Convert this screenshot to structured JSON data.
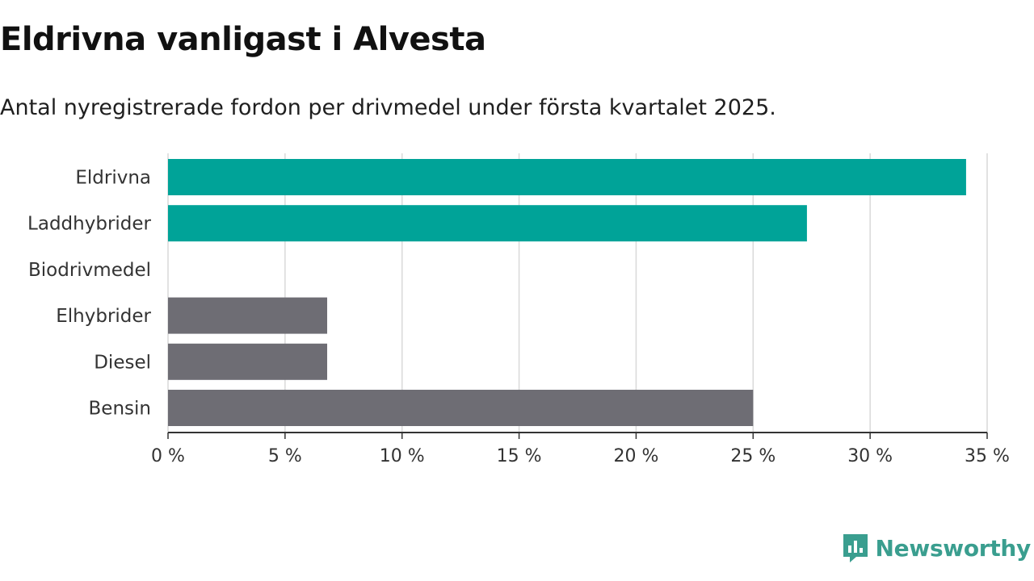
{
  "header": {
    "title": "Eldrivna vanligast i Alvesta",
    "subtitle": "Antal nyregistrerade fordon per drivmedel under första kvartalet 2025."
  },
  "brand": {
    "name": "Newsworthy",
    "color": "#3a9e8f",
    "icon": "newsworthy-chart-logo-icon"
  },
  "colors": {
    "highlight": "#00a398",
    "other": "#6e6d74",
    "grid": "#d9d9d9",
    "axis": "#333333"
  },
  "chart_data": {
    "type": "bar",
    "orientation": "horizontal",
    "categories": [
      "Eldrivna",
      "Laddhybrider",
      "Biodrivmedel",
      "Elhybrider",
      "Diesel",
      "Bensin"
    ],
    "values": [
      34.1,
      27.3,
      0,
      6.8,
      6.8,
      25.0
    ],
    "highlighted": [
      true,
      true,
      false,
      false,
      false,
      false
    ],
    "xlim": [
      0,
      35
    ],
    "xticks": [
      0,
      5,
      10,
      15,
      20,
      25,
      30,
      35
    ],
    "xtick_labels": [
      "0 %",
      "5 %",
      "10 %",
      "15 %",
      "20 %",
      "25 %",
      "30 %",
      "35 %"
    ],
    "grid": true
  }
}
